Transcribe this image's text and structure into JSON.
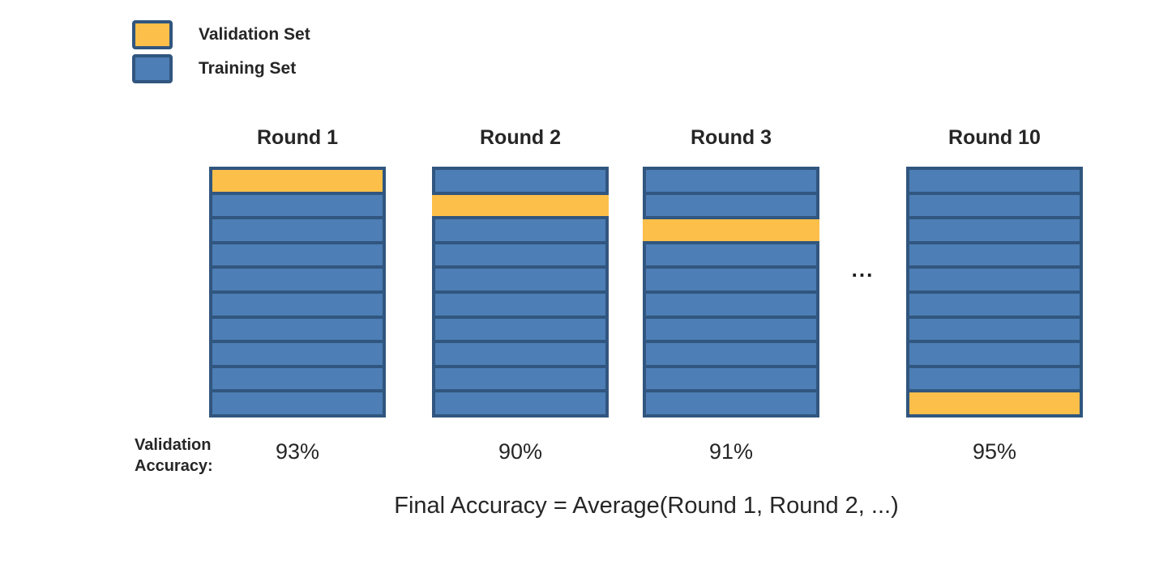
{
  "colors": {
    "validation": "#FCBF4A",
    "training": "#4D7EB5",
    "border": "#31567F",
    "text": "#262626"
  },
  "legend": {
    "items": [
      {
        "name": "validation-set",
        "label": "Validation Set",
        "color_key": "validation"
      },
      {
        "name": "training-set",
        "label": "Training Set",
        "color_key": "training"
      }
    ]
  },
  "rounds": [
    {
      "title": "Round 1",
      "num_folds": 10,
      "validation_fold_index": 0,
      "accuracy": "93%",
      "validation_overlay": false
    },
    {
      "title": "Round 2",
      "num_folds": 10,
      "validation_fold_index": 1,
      "accuracy": "90%",
      "validation_overlay": true
    },
    {
      "title": "Round 3",
      "num_folds": 10,
      "validation_fold_index": 2,
      "accuracy": "91%",
      "validation_overlay": true
    },
    {
      "title": "Round 10",
      "num_folds": 10,
      "validation_fold_index": 9,
      "accuracy": "95%",
      "validation_overlay": false
    }
  ],
  "ellipsis": "...",
  "validation_accuracy_caption": "Validation\nAccuracy:",
  "final_accuracy_formula": "Final Accuracy  =  Average(Round 1, Round 2, ...)"
}
